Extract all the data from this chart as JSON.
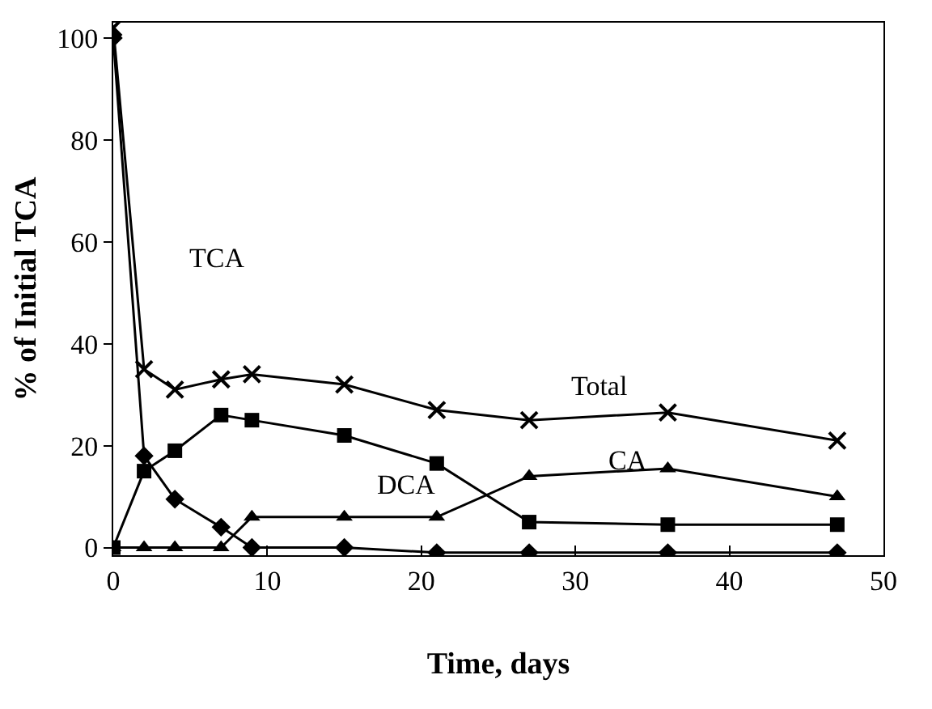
{
  "chart_data": {
    "type": "line",
    "xlabel": "Time, days",
    "ylabel": "% of Initial TCA",
    "x": [
      0,
      2,
      4,
      7,
      9,
      15,
      21,
      27,
      36,
      47
    ],
    "series": [
      {
        "name": "TCA",
        "color": "#000000",
        "marker": "diamond",
        "values": [
          100,
          18,
          9.5,
          4,
          0,
          0,
          -1,
          -1,
          -1,
          -1
        ]
      },
      {
        "name": "DCA",
        "color": "#000000",
        "marker": "square",
        "values": [
          0,
          15,
          19,
          26,
          25,
          22,
          16.5,
          5,
          4.5,
          4.5
        ]
      },
      {
        "name": "CA",
        "color": "#000000",
        "marker": "triangle",
        "values": [
          0,
          0,
          0,
          0,
          6,
          6,
          6,
          14,
          15.5,
          10
        ]
      },
      {
        "name": "Total",
        "color": "#000000",
        "marker": "cross",
        "values": [
          102,
          35,
          31,
          33,
          34,
          32,
          27,
          25,
          26.5,
          21
        ]
      }
    ],
    "xlim": [
      0,
      50
    ],
    "xticks": [
      0,
      10,
      20,
      30,
      40,
      50
    ],
    "ylim": [
      -1.5,
      103
    ],
    "yticks": [
      0,
      20,
      40,
      60,
      80,
      100
    ],
    "grid": false,
    "legend": false,
    "line_style": "solid"
  }
}
